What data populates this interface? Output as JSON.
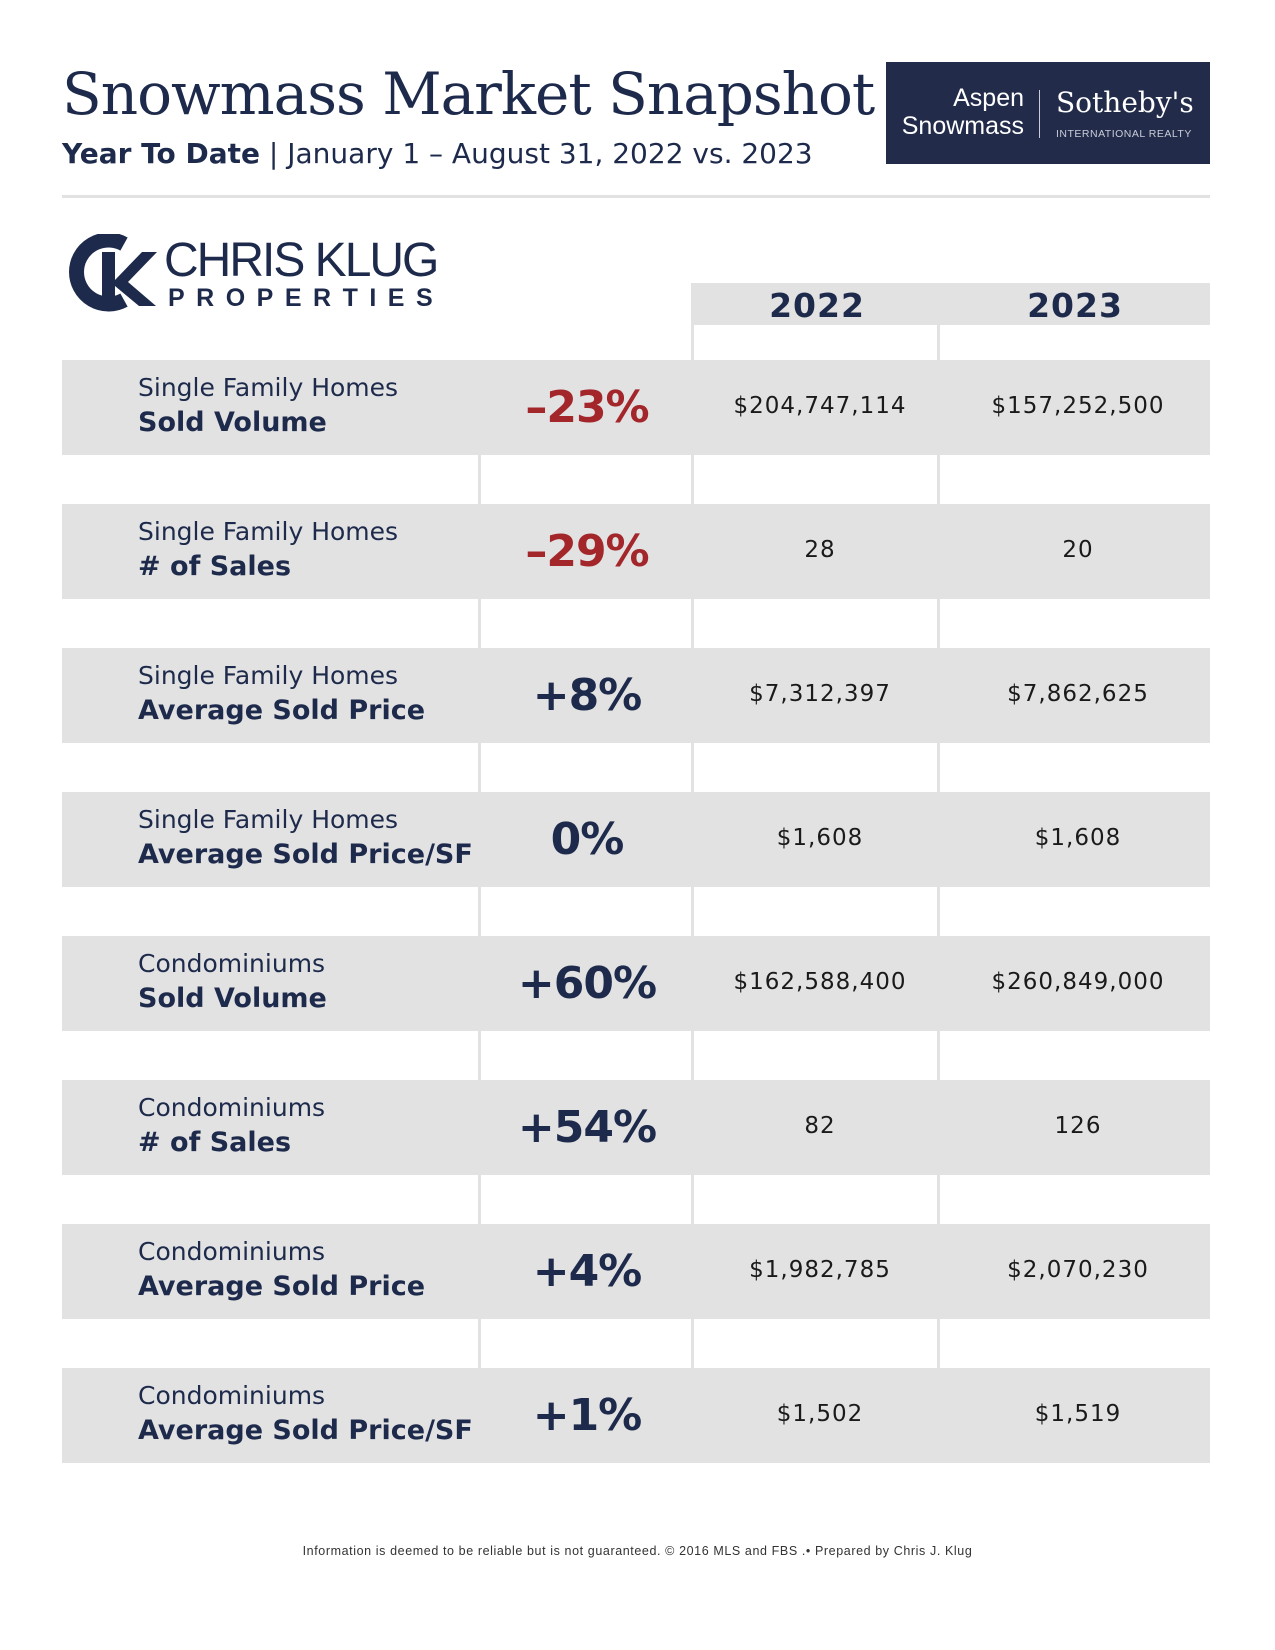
{
  "header": {
    "title": "Snowmass Market Snapshot",
    "subtitle_bold": "Year To Date",
    "subtitle_rest": " | January 1 – August 31, 2022 vs. 2023"
  },
  "brand": {
    "left_line1": "Aspen",
    "left_line2": "Snowmass",
    "right_name": "Sotheby's",
    "right_tagline": "INTERNATIONAL REALTY",
    "background_color": "#222b4a"
  },
  "logo": {
    "name": "CHRIS KLUG",
    "sub": "PROPERTIES",
    "monogram": "CK"
  },
  "columns": {
    "year1": "2022",
    "year2": "2023"
  },
  "colors": {
    "navy": "#1d2a4b",
    "negative_red": "#a3262b",
    "row_gray": "#e2e2e2"
  },
  "rows": [
    {
      "category": "Single Family Homes",
      "metric": "Sold Volume",
      "change": "–23%",
      "negative": true,
      "v2022": "$204,747,114",
      "v2023": "$157,252,500"
    },
    {
      "category": "Single Family Homes",
      "metric": "# of Sales",
      "change": "–29%",
      "negative": true,
      "v2022": "28",
      "v2023": "20"
    },
    {
      "category": "Single Family Homes",
      "metric": "Average Sold Price",
      "change": "+8%",
      "negative": false,
      "v2022": "$7,312,397",
      "v2023": "$7,862,625"
    },
    {
      "category": "Single Family Homes",
      "metric": "Average Sold Price/SF",
      "change": "0%",
      "negative": false,
      "v2022": "$1,608",
      "v2023": "$1,608"
    },
    {
      "category": "Condominiums",
      "metric": "Sold Volume",
      "change": "+60%",
      "negative": false,
      "v2022": "$162,588,400",
      "v2023": "$260,849,000"
    },
    {
      "category": "Condominiums",
      "metric": "# of Sales",
      "change": "+54%",
      "negative": false,
      "v2022": "82",
      "v2023": "126"
    },
    {
      "category": "Condominiums",
      "metric": "Average Sold Price",
      "change": "+4%",
      "negative": false,
      "v2022": "$1,982,785",
      "v2023": "$2,070,230"
    },
    {
      "category": "Condominiums",
      "metric": "Average Sold Price/SF",
      "change": "+1%",
      "negative": false,
      "v2022": "$1,502",
      "v2023": "$1,519"
    }
  ],
  "footer": {
    "text": "Information is deemed to be reliable but is not guaranteed. © 2016 MLS and FBS .• Prepared by Chris J. Klug"
  }
}
